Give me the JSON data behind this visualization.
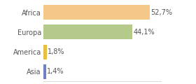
{
  "categories": [
    "Africa",
    "Europa",
    "America",
    "Asia"
  ],
  "values": [
    52.7,
    44.1,
    1.8,
    1.4
  ],
  "labels": [
    "52,7%",
    "44,1%",
    "1,8%",
    "1,4%"
  ],
  "bar_colors": [
    "#f5c88a",
    "#b5c98a",
    "#e8c040",
    "#7080c0"
  ],
  "background_color": "#ffffff",
  "xlim": [
    0,
    58
  ],
  "label_fontsize": 7,
  "tick_fontsize": 7,
  "bar_height": 0.75
}
